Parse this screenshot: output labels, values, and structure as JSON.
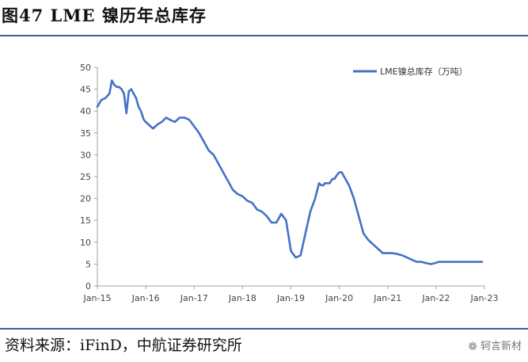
{
  "header": {
    "title": "图47  LME 镍历年总库存"
  },
  "footer": {
    "source": "资料来源：iFinD，中航证券研究所",
    "watermark_text": "轲言新材",
    "watermark_icon": "wechat-icon"
  },
  "colors": {
    "line": "#4472c4",
    "rule": "#3d5f97"
  },
  "chart_data": {
    "type": "line",
    "title": "",
    "xlabel": "",
    "ylabel": "",
    "ylim": [
      0,
      50
    ],
    "yticks": [
      0,
      5,
      10,
      15,
      20,
      25,
      30,
      35,
      40,
      45,
      50
    ],
    "xlim": [
      2015.0,
      2023.0
    ],
    "xticks": [
      {
        "value": 2015.0,
        "label": "Jan-15"
      },
      {
        "value": 2016.0,
        "label": "Jan-16"
      },
      {
        "value": 2017.0,
        "label": "Jan-17"
      },
      {
        "value": 2018.0,
        "label": "Jan-18"
      },
      {
        "value": 2019.0,
        "label": "Jan-19"
      },
      {
        "value": 2020.0,
        "label": "Jan-20"
      },
      {
        "value": 2021.0,
        "label": "Jan-21"
      },
      {
        "value": 2022.0,
        "label": "Jan-22"
      },
      {
        "value": 2023.0,
        "label": "Jan-23"
      }
    ],
    "grid": false,
    "legend_position": "top-right",
    "series": [
      {
        "name": "LME镍总库存（万吨）",
        "x": [
          2015.0,
          2015.08,
          2015.17,
          2015.25,
          2015.3,
          2015.35,
          2015.4,
          2015.45,
          2015.5,
          2015.55,
          2015.6,
          2015.65,
          2015.7,
          2015.75,
          2015.8,
          2015.85,
          2015.9,
          2015.93,
          2015.96,
          2016.0,
          2016.05,
          2016.1,
          2016.15,
          2016.2,
          2016.25,
          2016.33,
          2016.42,
          2016.5,
          2016.6,
          2016.7,
          2016.8,
          2016.9,
          2017.0,
          2017.1,
          2017.2,
          2017.3,
          2017.4,
          2017.5,
          2017.6,
          2017.7,
          2017.8,
          2017.9,
          2018.0,
          2018.1,
          2018.2,
          2018.3,
          2018.4,
          2018.5,
          2018.6,
          2018.7,
          2018.8,
          2018.9,
          2019.0,
          2019.1,
          2019.2,
          2019.3,
          2019.4,
          2019.5,
          2019.58,
          2019.63,
          2019.67,
          2019.7,
          2019.73,
          2019.76,
          2019.8,
          2019.83,
          2019.86,
          2019.9,
          2019.93,
          2019.96,
          2020.0,
          2020.05,
          2020.1,
          2020.2,
          2020.3,
          2020.4,
          2020.5,
          2020.6,
          2020.7,
          2020.8,
          2020.9,
          2021.0,
          2021.1,
          2021.2,
          2021.3,
          2021.4,
          2021.5,
          2021.6,
          2021.7,
          2021.8,
          2021.9,
          2022.0,
          2022.05,
          2022.1,
          2022.2,
          2022.3,
          2022.4,
          2022.5,
          2022.6,
          2022.7,
          2022.8,
          2022.9,
          2022.95
        ],
        "values": [
          41,
          42.5,
          43,
          44,
          47,
          46,
          45.5,
          45.5,
          45,
          44,
          39.5,
          44.5,
          45,
          44,
          43,
          41,
          40,
          39,
          38,
          37.5,
          37,
          36.5,
          36,
          36.5,
          37,
          37.5,
          38.5,
          38,
          37.5,
          38.5,
          38.5,
          38,
          36.5,
          35,
          33,
          31,
          30,
          28,
          26,
          24,
          22,
          21,
          20.5,
          19.5,
          19,
          17.5,
          17,
          16,
          14.5,
          14.5,
          16.5,
          15,
          8,
          6.5,
          7,
          12,
          17,
          20,
          23.5,
          23,
          23,
          23.5,
          23.5,
          23.5,
          23.5,
          24,
          24.5,
          24.5,
          25,
          25.5,
          26,
          26,
          25,
          23,
          20,
          16,
          12,
          10.5,
          9.5,
          8.5,
          7.5,
          7.5,
          7.5,
          7.3,
          7,
          6.5,
          6,
          5.5,
          5.5,
          5.2,
          5,
          5.3,
          5.5,
          5.5,
          5.5,
          5.5,
          5.5,
          5.5,
          5.5,
          5.5,
          5.5,
          5.5,
          5.5
        ]
      }
    ]
  }
}
